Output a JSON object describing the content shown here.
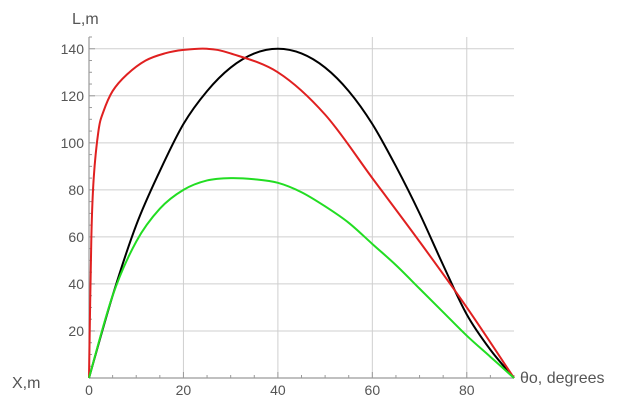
{
  "chart_data": {
    "type": "line",
    "ylabel": "L,m",
    "xlabel": "θo, degrees",
    "xaxis_side_label": "X,m",
    "xlim": [
      0,
      90
    ],
    "ylim": [
      0,
      145
    ],
    "x_ticks": [
      0,
      20,
      40,
      60,
      80
    ],
    "y_ticks": [
      20,
      40,
      60,
      80,
      100,
      120,
      140
    ],
    "grid": true,
    "legend": "none",
    "series": [
      {
        "color": "#000000",
        "x": [
          0,
          5,
          10,
          15,
          20,
          25,
          30,
          35,
          40,
          45,
          50,
          55,
          60,
          65,
          70,
          75,
          80,
          85,
          90
        ],
        "values": [
          0,
          35,
          65,
          88,
          108,
          122,
          132,
          138,
          140,
          138,
          132,
          122,
          108,
          90,
          70,
          48,
          27,
          12,
          0
        ]
      },
      {
        "color": "#e02020",
        "x": [
          0,
          0.5,
          1,
          2,
          3,
          5,
          8,
          12,
          16,
          20,
          25,
          30,
          40,
          50,
          60,
          70,
          80,
          90
        ],
        "values": [
          0,
          60,
          85,
          105,
          113,
          122,
          129,
          135,
          138,
          139.5,
          140,
          138,
          130,
          112,
          85,
          58,
          30,
          0
        ]
      },
      {
        "color": "#22dd22",
        "x": [
          0,
          5,
          10,
          15,
          20,
          25,
          30,
          35,
          40,
          45,
          50,
          55,
          60,
          65,
          70,
          75,
          80,
          85,
          90
        ],
        "values": [
          0,
          35,
          58,
          72,
          80,
          84,
          85,
          84.5,
          83,
          79,
          73,
          66,
          57,
          48,
          38,
          28,
          18,
          9,
          0
        ]
      }
    ]
  }
}
